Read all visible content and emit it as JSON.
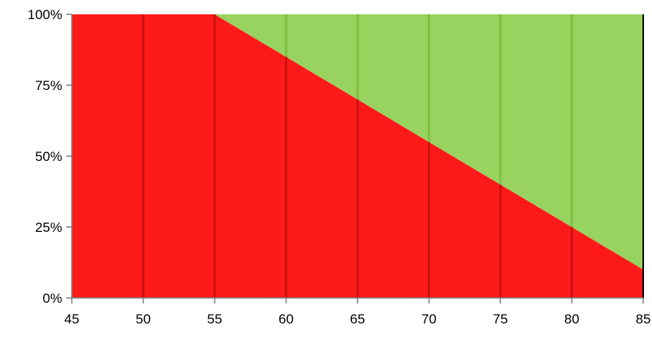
{
  "chart_data": {
    "type": "area",
    "stacked": true,
    "x": [
      45,
      50,
      55,
      60,
      65,
      70,
      75,
      80,
      85
    ],
    "series": [
      {
        "values": [
          100,
          100,
          100,
          85,
          70,
          55,
          40,
          25,
          10
        ],
        "color": "#ff1a1a"
      },
      {
        "values": [
          0,
          0,
          0,
          15,
          30,
          45,
          60,
          75,
          90
        ],
        "color": "#99d35f"
      }
    ],
    "xlim": [
      45,
      85
    ],
    "ylim": [
      0,
      100
    ],
    "x_ticks": [
      45,
      50,
      55,
      60,
      65,
      70,
      75,
      80,
      85
    ],
    "x_tick_labels": [
      "45",
      "50",
      "55",
      "60",
      "65",
      "70",
      "75",
      "80",
      "85"
    ],
    "y_ticks": [
      0,
      25,
      50,
      75,
      100
    ],
    "y_tick_labels": [
      "0%",
      "25%",
      "50%",
      "75%",
      "100%"
    ],
    "vertical_gridlines": true,
    "gridline_color_on_red": "#cc1010",
    "gridline_color_on_green": "#7fbf45",
    "title": "",
    "xlabel": "",
    "ylabel": ""
  }
}
